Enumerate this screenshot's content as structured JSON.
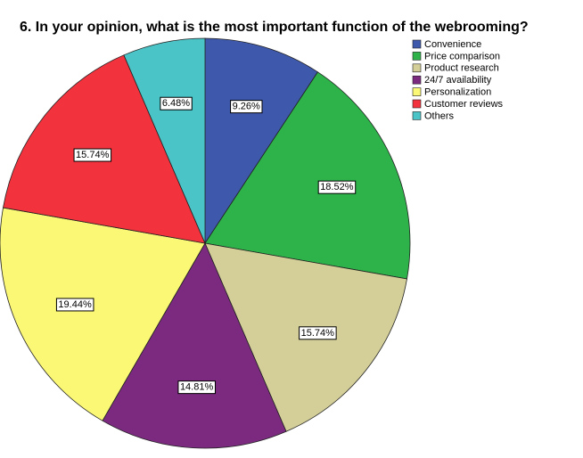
{
  "chart_data": {
    "type": "pie",
    "title": "6. In your opinion, what is the most important function of the webrooming?",
    "categories": [
      "Convenience",
      "Price comparison",
      "Product research",
      "24/7 availability",
      "Personalization",
      "Customer reviews",
      "Others"
    ],
    "values": [
      9.26,
      18.52,
      15.74,
      14.81,
      19.44,
      15.74,
      6.48
    ],
    "value_labels": [
      "9.26%",
      "18.52%",
      "15.74%",
      "14.81%",
      "19.44%",
      "15.74%",
      "6.48%"
    ],
    "colors": [
      "#3e58ac",
      "#2db34a",
      "#d4cf98",
      "#7b2a80",
      "#fbf876",
      "#f2333d",
      "#4bc4c8"
    ],
    "legend": "top-right"
  }
}
